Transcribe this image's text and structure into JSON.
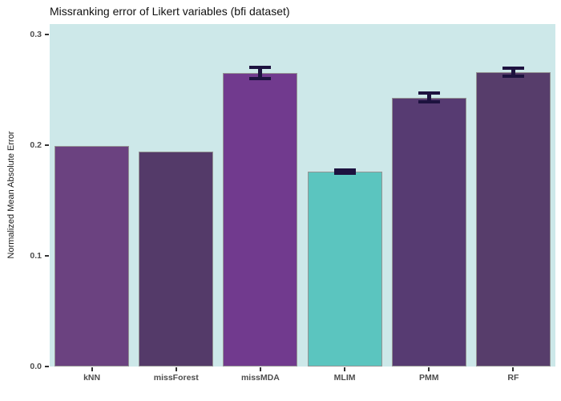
{
  "chart_data": {
    "type": "bar",
    "title": "Missranking error of Likert variables (bfi dataset)",
    "xlabel": "",
    "ylabel": "Normalized Mean Absolute Error",
    "categories": [
      "kNN",
      "missForest",
      "missMDA",
      "MLIM",
      "PMM",
      "RF"
    ],
    "values": [
      0.199,
      0.194,
      0.265,
      0.176,
      0.243,
      0.266
    ],
    "error_bars": [
      null,
      null,
      0.005,
      0.0015,
      0.004,
      0.0035
    ],
    "bar_colors": [
      "#6B4280",
      "#543A69",
      "#713A8E",
      "#5BC5BF",
      "#573B72",
      "#573D6B"
    ],
    "bar_edge_color": "#949494",
    "error_bar_color": "#1D123F",
    "ylim": [
      0,
      0.3094
    ],
    "yticks": [
      0,
      0.1,
      0.2,
      0.3
    ],
    "ytick_labels": [
      "0.0",
      "0.1",
      "0.2",
      "0.3"
    ],
    "grid": false,
    "legend": "none",
    "panel_background": "#CDE8E9"
  }
}
